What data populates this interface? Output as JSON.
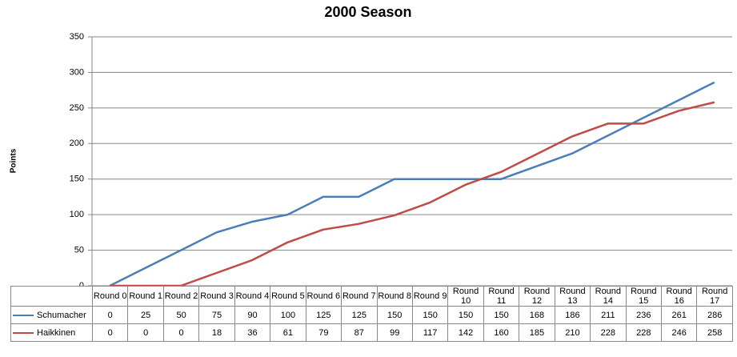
{
  "chart_data": {
    "type": "line",
    "title": "2000 Season",
    "y_label": "Points",
    "categories": [
      "Round 0",
      "Round 1",
      "Round 2",
      "Round 3",
      "Round 4",
      "Round 5",
      "Round 6",
      "Round 7",
      "Round 8",
      "Round 9",
      "Round 10",
      "Round 11",
      "Round 12",
      "Round 13",
      "Round 14",
      "Round 15",
      "Round 16",
      "Round 17"
    ],
    "series": [
      {
        "name": "Schumacher",
        "color": "#4a7ebb",
        "values": [
          0,
          25,
          50,
          75,
          90,
          100,
          125,
          125,
          150,
          150,
          150,
          150,
          168,
          186,
          211,
          236,
          261,
          286
        ]
      },
      {
        "name": "Haikkinen",
        "color": "#be4b48",
        "values": [
          0,
          0,
          0,
          18,
          36,
          61,
          79,
          87,
          99,
          117,
          142,
          160,
          185,
          210,
          228,
          228,
          246,
          258
        ]
      }
    ],
    "ylim": [
      0,
      350
    ],
    "yticks": [
      0,
      50,
      100,
      150,
      200,
      250,
      300,
      350
    ],
    "grid": true,
    "legend": "data-table"
  }
}
